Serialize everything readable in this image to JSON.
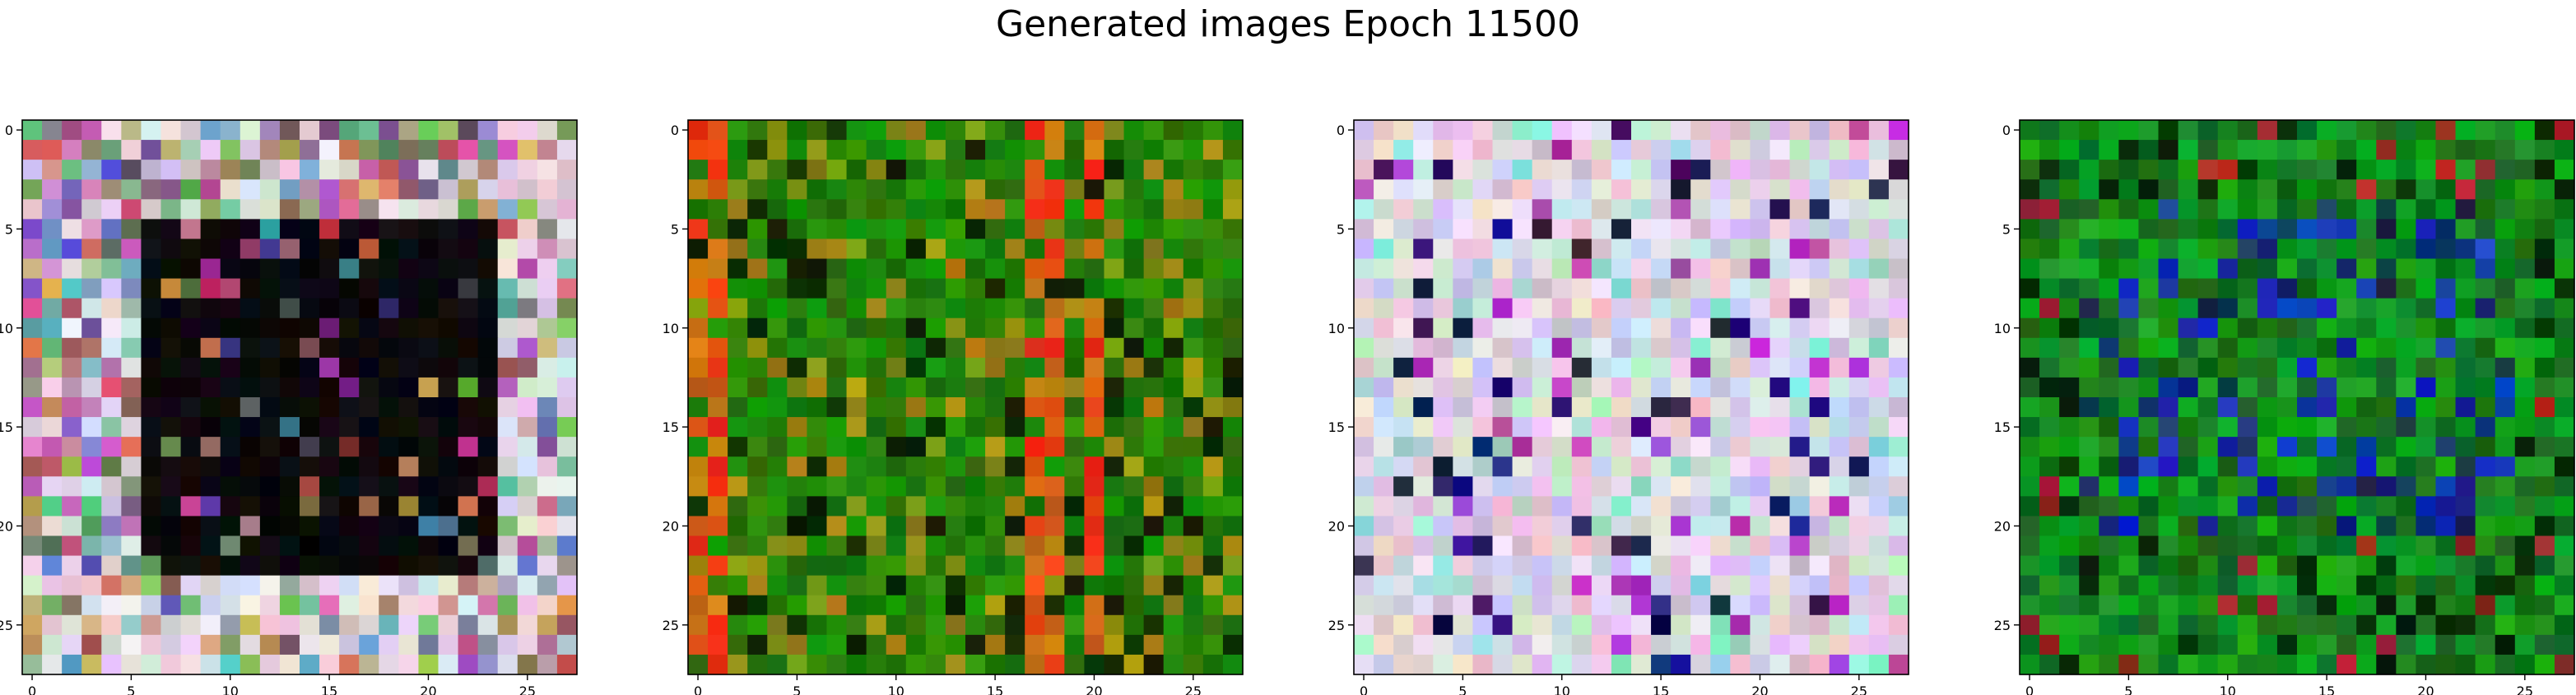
{
  "title": "Generated images Epoch 11500",
  "chart_data": {
    "type": "heatmap",
    "title": "Generated images Epoch 11500",
    "grid": false,
    "images": [
      {
        "name": "",
        "width": 28,
        "height": 28,
        "style": "dark-square-framed",
        "base_colors": [
          "#000000",
          "#8a6a7a",
          "#d8d0dc"
        ]
      },
      {
        "name": "",
        "width": 28,
        "height": 28,
        "style": "green-orange-stripes",
        "base_colors": [
          "#1a7a00",
          "#c86410",
          "#e02010"
        ]
      },
      {
        "name": "",
        "width": 28,
        "height": 28,
        "style": "pastel-noise",
        "base_colors": [
          "#d8cfe0",
          "#c8a0c8",
          "#a0d8c8"
        ]
      },
      {
        "name": "",
        "width": 28,
        "height": 28,
        "style": "green-blue-noise",
        "base_colors": [
          "#0a6e12",
          "#102060",
          "#1aa030"
        ]
      }
    ],
    "axes": {
      "xlim": [
        -0.5,
        27.5
      ],
      "ylim": [
        27.5,
        -0.5
      ],
      "xticks": [
        0,
        5,
        10,
        15,
        20,
        25
      ],
      "yticks": [
        0,
        5,
        10,
        15,
        20,
        25
      ],
      "xtick_labels": [
        "0",
        "5",
        "10",
        "15",
        "20",
        "25"
      ],
      "ytick_labels": [
        "0",
        "5",
        "10",
        "15",
        "20",
        "25"
      ]
    }
  }
}
